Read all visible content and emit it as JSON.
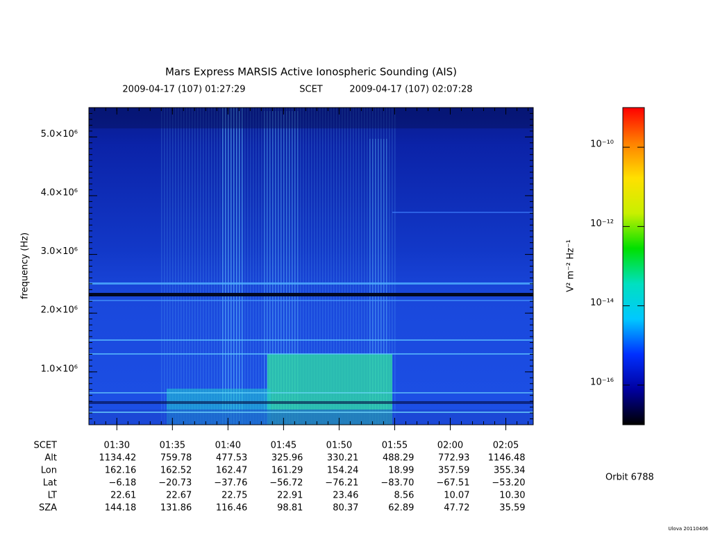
{
  "chart_data": {
    "type": "spectrogram",
    "title": "Mars Express MARSIS Active Ionospheric Sounding (AIS)",
    "subtitle": [
      "2009-04-17 (107) 01:27:29",
      "SCET",
      "2009-04-17 (107) 02:07:28"
    ],
    "ylabel": "frequency (Hz)",
    "xlim": [
      "01:27:29",
      "02:07:28"
    ],
    "xticks": [
      "01:30",
      "01:35",
      "01:40",
      "01:45",
      "01:50",
      "01:55",
      "02:00",
      "02:05"
    ],
    "ylim": [
      100000,
      5500000
    ],
    "yticks": [
      {
        "value": 1000000,
        "label": "1.0×10⁶"
      },
      {
        "value": 2000000,
        "label": "2.0×10⁶"
      },
      {
        "value": 3000000,
        "label": "3.0×10⁶"
      },
      {
        "value": 4000000,
        "label": "4.0×10⁶"
      },
      {
        "value": 5000000,
        "label": "5.0×10⁶"
      }
    ],
    "ephemeris": {
      "label": "SCET",
      "rows": [
        {
          "label": "Alt",
          "values": [
            "1134.42",
            "759.78",
            "477.53",
            "325.96",
            "330.21",
            "488.29",
            "772.93",
            "1146.48"
          ]
        },
        {
          "label": "Lon",
          "values": [
            "162.16",
            "162.52",
            "162.47",
            "161.29",
            "154.24",
            "18.99",
            "357.59",
            "355.34"
          ]
        },
        {
          "label": "Lat",
          "values": [
            "−6.18",
            "−20.73",
            "−37.76",
            "−56.72",
            "−76.21",
            "−83.70",
            "−67.51",
            "−53.20"
          ]
        },
        {
          "label": "LT",
          "values": [
            "22.61",
            "22.67",
            "22.75",
            "22.91",
            "23.46",
            "8.56",
            "10.07",
            "10.30"
          ]
        },
        {
          "label": "SZA",
          "values": [
            "144.18",
            "131.86",
            "116.46",
            "98.81",
            "80.37",
            "62.89",
            "47.72",
            "35.59"
          ]
        }
      ]
    },
    "colorbar": {
      "label": "V² m⁻² Hz⁻¹",
      "log": true,
      "clim": [
        1e-17,
        1e-09
      ],
      "colors": [
        "#000000",
        "#0000a0",
        "#0030ff",
        "#00c8ff",
        "#00e0c0",
        "#00e000",
        "#c8f000",
        "#ffe000",
        "#ff8000",
        "#ff0000"
      ],
      "ticks": [
        {
          "value": 1e-10,
          "label": "10⁻¹⁰"
        },
        {
          "value": 1e-12,
          "label": "10⁻¹²"
        },
        {
          "value": 1e-14,
          "label": "10⁻¹⁴"
        },
        {
          "value": 1e-16,
          "label": "10⁻¹⁶"
        }
      ]
    },
    "orbit": "Orbit 6788",
    "credit": "Ulova 20110406"
  }
}
